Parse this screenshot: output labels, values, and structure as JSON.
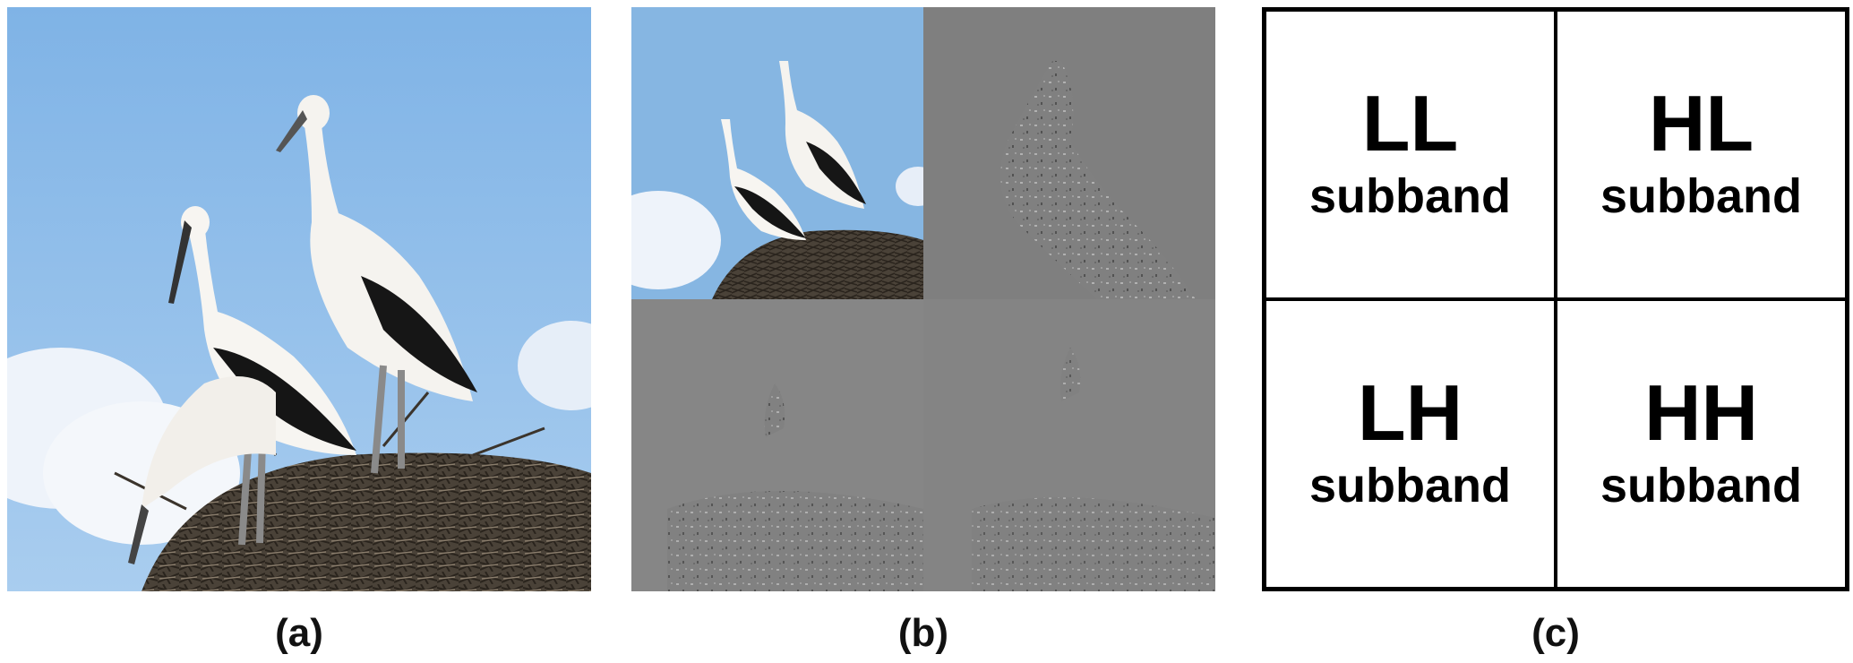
{
  "captions": {
    "a": "(a)",
    "b": "(b)",
    "c": "(c)"
  },
  "subbands": {
    "ll": {
      "title": "LL",
      "label": "subband"
    },
    "hl": {
      "title": "HL",
      "label": "subband"
    },
    "lh": {
      "title": "LH",
      "label": "subband"
    },
    "hh": {
      "title": "HH",
      "label": "subband"
    }
  },
  "colors": {
    "sky": "#8dbbe8",
    "cloud": "#eef3fa",
    "detail_gray": "#858585",
    "nest": "#3a332b"
  }
}
